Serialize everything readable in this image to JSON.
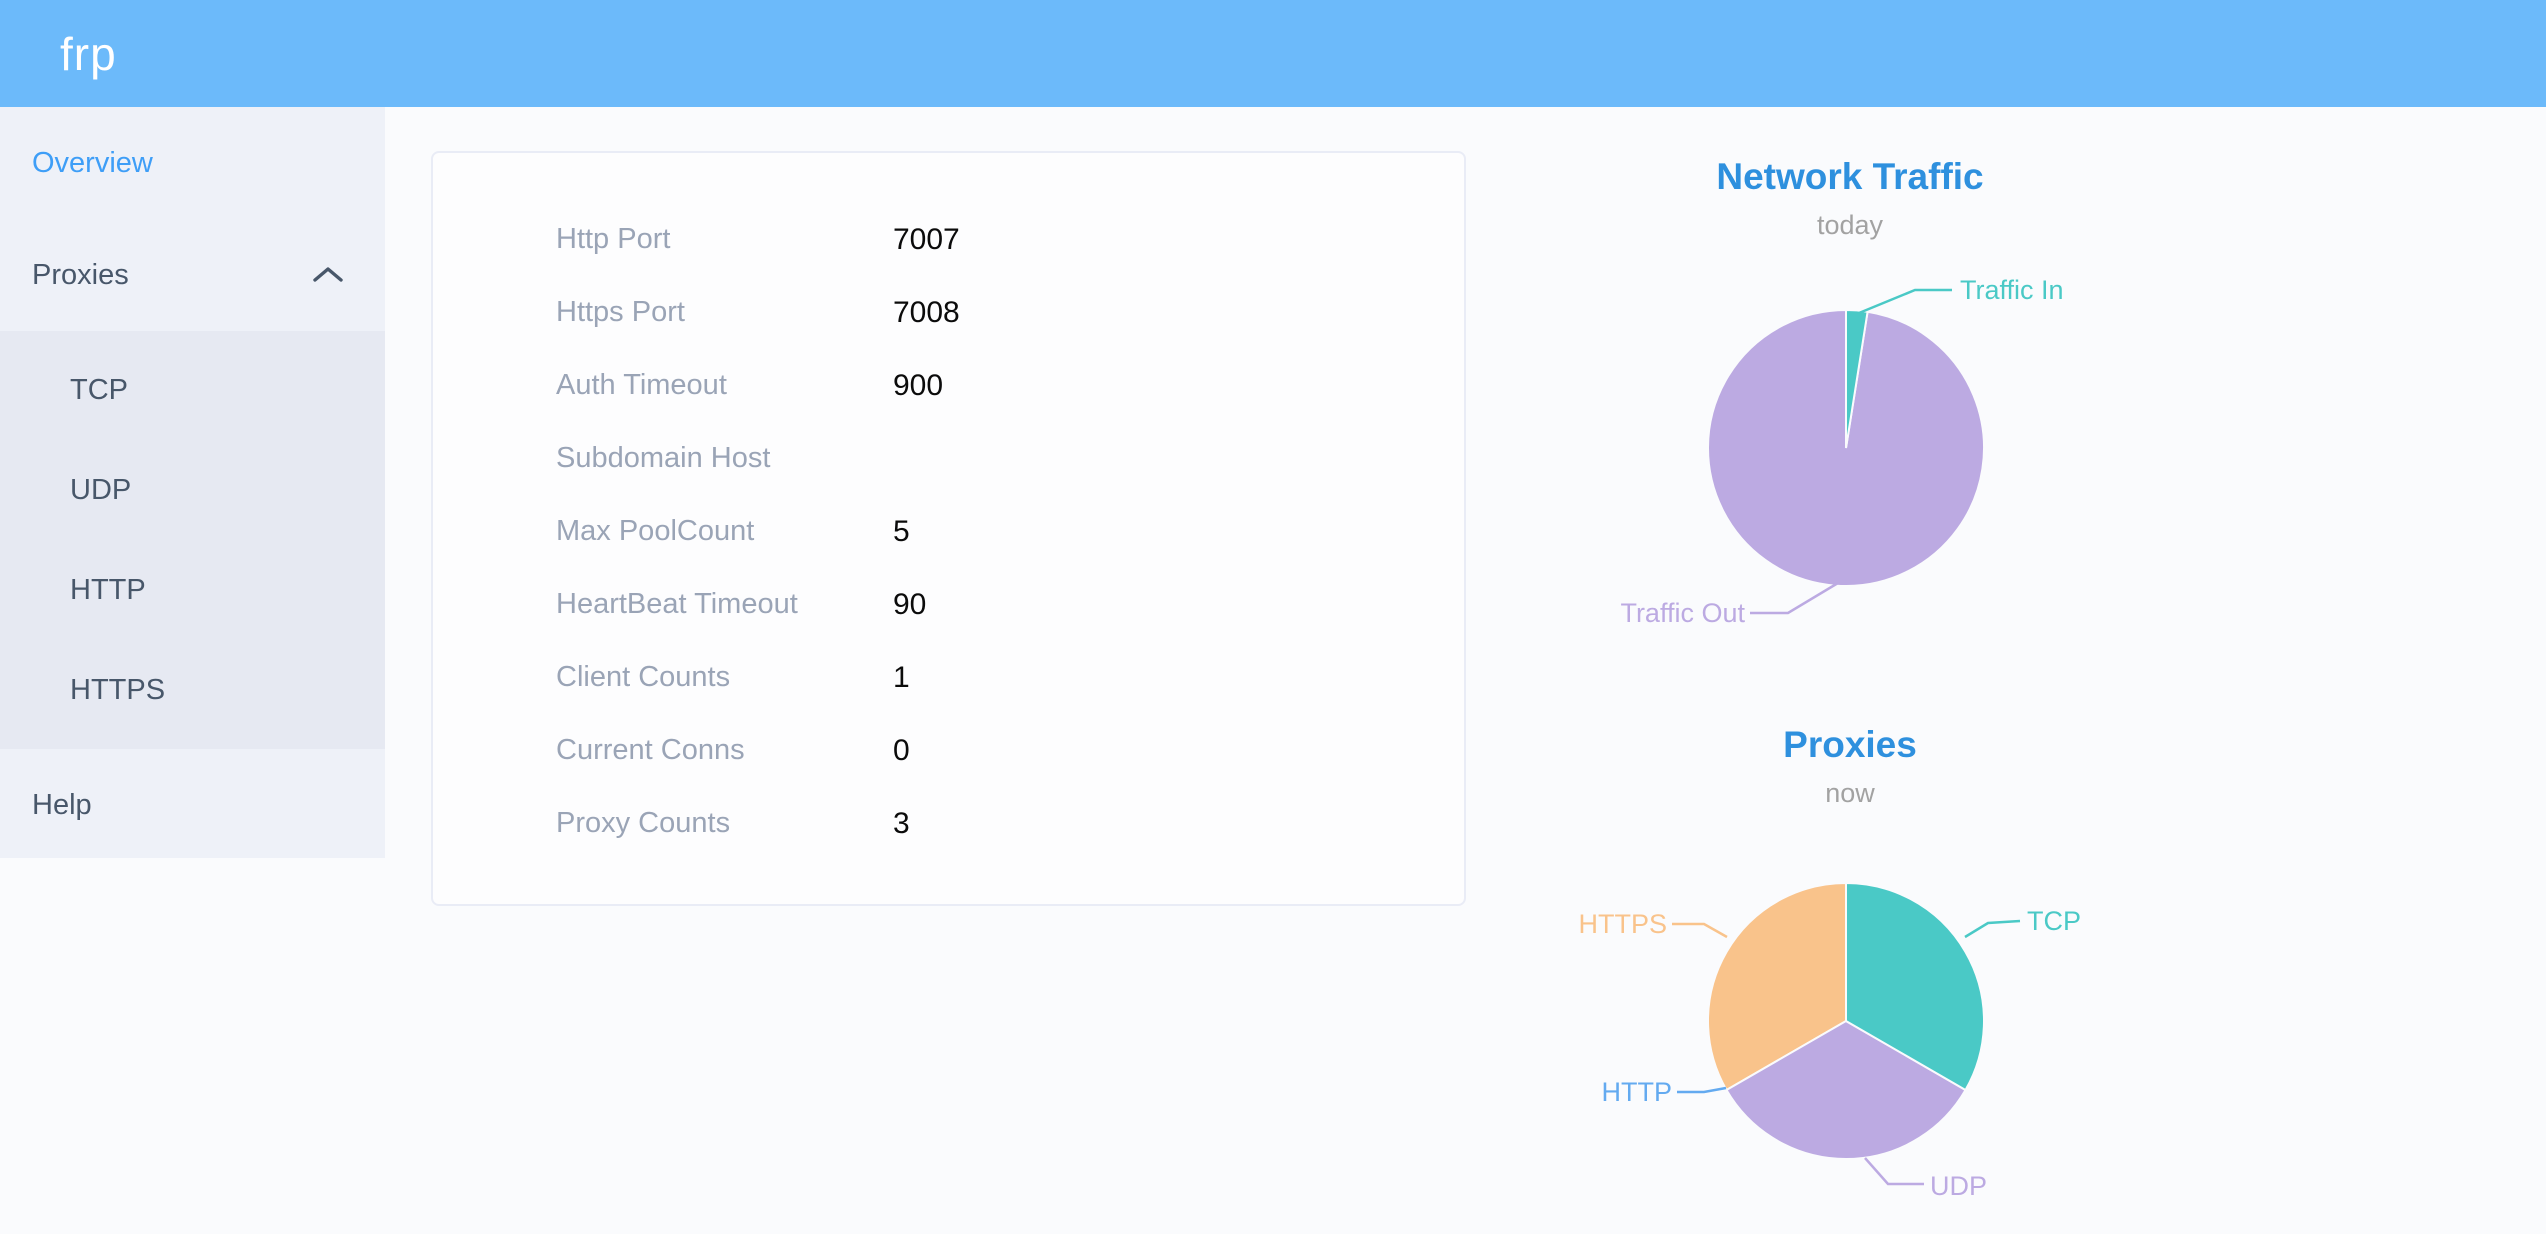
{
  "header": {
    "logo": "frp"
  },
  "sidebar": {
    "items": [
      {
        "label": "Overview",
        "active": true
      },
      {
        "label": "Proxies",
        "expanded": true,
        "children": [
          "TCP",
          "UDP",
          "HTTP",
          "HTTPS"
        ]
      },
      {
        "label": "Help"
      }
    ]
  },
  "overview_card": {
    "rows": [
      {
        "label": "Http Port",
        "value": "7007"
      },
      {
        "label": "Https Port",
        "value": "7008"
      },
      {
        "label": "Auth Timeout",
        "value": "900"
      },
      {
        "label": "Subdomain Host",
        "value": ""
      },
      {
        "label": "Max PoolCount",
        "value": "5"
      },
      {
        "label": "HeartBeat Timeout",
        "value": "90"
      },
      {
        "label": "Client Counts",
        "value": "1"
      },
      {
        "label": "Current Conns",
        "value": "0"
      },
      {
        "label": "Proxy Counts",
        "value": "3"
      }
    ]
  },
  "chart_data": [
    {
      "type": "pie",
      "title": "Network Traffic",
      "subtitle": "today",
      "legend_position": "none",
      "labels_via_leader_lines": true,
      "slices": [
        {
          "label": "Traffic In",
          "percent": 2.5,
          "color": "#4ac9c6"
        },
        {
          "label": "Traffic Out",
          "percent": 97.5,
          "color": "#bcaae2"
        }
      ]
    },
    {
      "type": "pie",
      "title": "Proxies",
      "subtitle": "now",
      "legend_position": "none",
      "labels_via_leader_lines": true,
      "slices": [
        {
          "label": "TCP",
          "value": 1,
          "percent": 33.3,
          "color": "#4ac9c6"
        },
        {
          "label": "UDP",
          "value": 1,
          "percent": 33.3,
          "color": "#bcaae2"
        },
        {
          "label": "HTTP",
          "value": 0,
          "percent": 0,
          "color": "#63aaf0"
        },
        {
          "label": "HTTPS",
          "value": 1,
          "percent": 33.3,
          "color": "#f9c38b"
        }
      ]
    }
  ],
  "colors": {
    "header_bg": "#6cbafa",
    "logo_text": "#ffffff",
    "sidebar_bg": "#eef1f8",
    "submenu_bg": "#e6e9f2",
    "menu_text": "#48576a",
    "active_menu": "#3e9ef7",
    "page_bg": "#fafbfd",
    "card_bg": "#fdfdfe",
    "card_border": "#e9ecf6",
    "row_label": "#9aa4b6",
    "row_value": "#0b0b0b",
    "chart_title": "#2e90de",
    "chart_subtitle": "#a2a2a2"
  }
}
